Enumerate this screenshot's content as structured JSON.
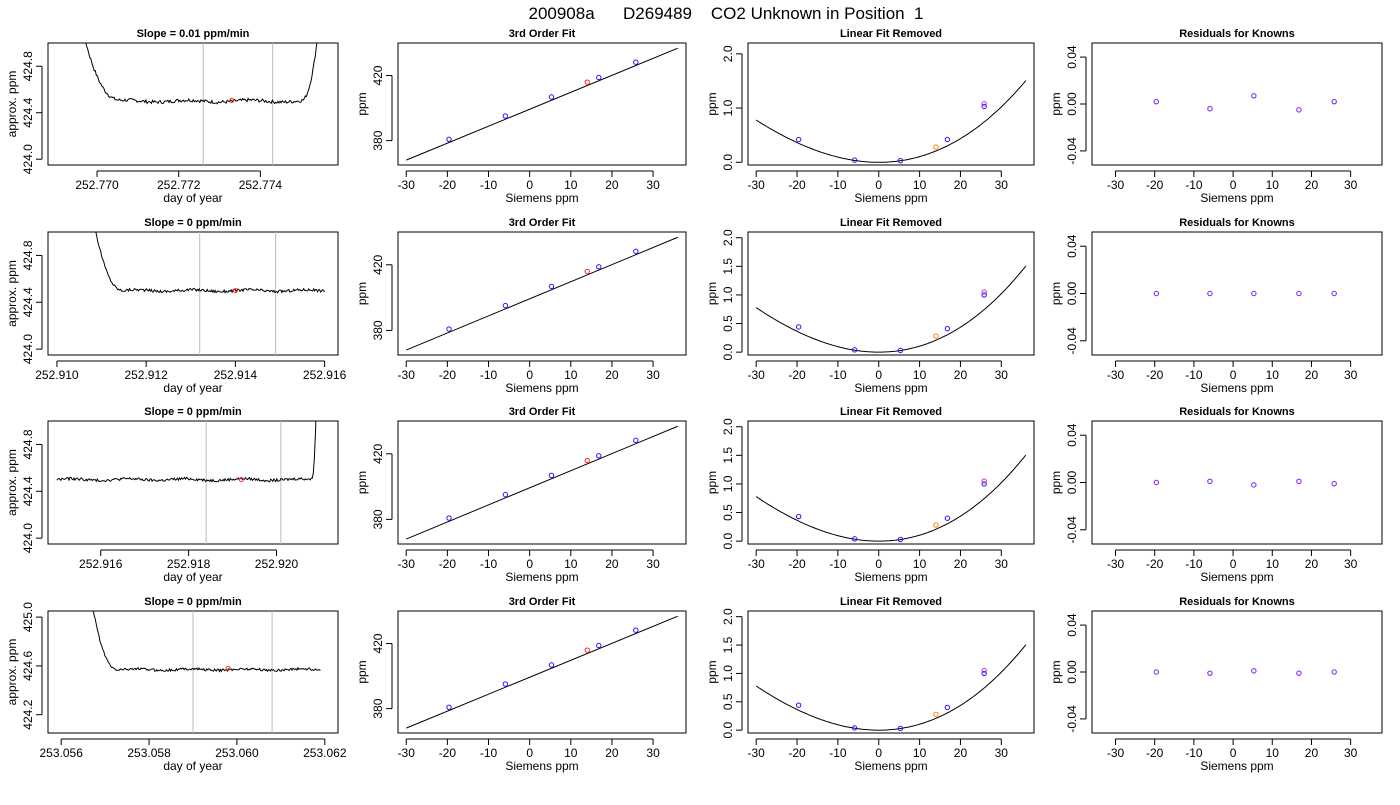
{
  "figure_title": "200908a      D269489    CO2 Unknown in Position  1",
  "colors": {
    "trace": "#000000",
    "guide": "#bdbdbd",
    "unknown": "#ff2a2a",
    "known_blue": "#1a1aff",
    "known_magenta": "#cc33cc",
    "known_purple": "#7a1aff",
    "unknown_orange": "#ff7f0e",
    "curve": "#000000"
  },
  "chart_data": [
    {
      "panel": "row1-col1",
      "type": "line",
      "title": "Slope =  0.01  ppm/min",
      "xlabel": "day of year",
      "ylabel": "approx. ppm",
      "xlim": [
        252.7688,
        252.7759
      ],
      "ylim": [
        423.95,
        425.0
      ],
      "xticks": [
        "252.770",
        "252.772",
        "252.774"
      ],
      "xtick_values": [
        252.77,
        252.772,
        252.774
      ],
      "yticks": [
        "424.0",
        "424.4",
        "424.8"
      ],
      "ytick_values": [
        424.0,
        424.4,
        424.8
      ],
      "trace": {
        "x_start": 252.7688,
        "x_end": 252.7758,
        "flat_from": 252.7706,
        "flat_to": 252.775,
        "level": 424.5,
        "noise": 0.015,
        "rise_left": true,
        "rise_right": true
      },
      "guides": [
        252.7726,
        252.7743
      ],
      "marker": {
        "x": 252.7733,
        "y": 424.505
      }
    },
    {
      "panel": "row1-col2",
      "type": "scatter",
      "title": "3rd Order Fit",
      "xlabel": "Siemens ppm",
      "ylabel": "ppm",
      "xlim": [
        -32,
        38
      ],
      "ylim": [
        365,
        440
      ],
      "xticks": [
        "-30",
        "-20",
        "-10",
        "0",
        "10",
        "20",
        "30"
      ],
      "xtick_values": [
        -30,
        -20,
        -10,
        0,
        10,
        20,
        30
      ],
      "yticks": [
        "380",
        "420"
      ],
      "ytick_values": [
        380,
        420
      ],
      "line": {
        "x": [
          -30,
          36
        ],
        "y": [
          368,
          436.8
        ]
      },
      "known_points": {
        "x": [
          -19.6,
          -5.9,
          5.3,
          16.8,
          25.8
        ],
        "y": [
          380.8,
          395.1,
          406.8,
          418.8,
          428.2
        ]
      },
      "unknown_point": {
        "x": 14.0,
        "y": 415.9
      }
    },
    {
      "panel": "row1-col3",
      "type": "scatter",
      "title": "Linear Fit Removed",
      "xlabel": "Siemens ppm",
      "ylabel": "ppm",
      "xlim": [
        -32,
        38
      ],
      "ylim": [
        -0.05,
        2.2
      ],
      "xticks": [
        "-30",
        "-20",
        "-10",
        "0",
        "10",
        "20",
        "30"
      ],
      "xtick_values": [
        -30,
        -20,
        -10,
        0,
        10,
        20,
        30
      ],
      "yticks": [
        "0.0",
        "1.0",
        "2.0"
      ],
      "ytick_values": [
        0.0,
        1.0,
        2.0
      ],
      "curve": {
        "a": 0.001,
        "b": 0.0,
        "cubic": 4.5e-06,
        "x_range": [
          -30,
          36
        ]
      },
      "known_points": {
        "x": [
          -19.6,
          -5.9,
          5.3,
          16.8,
          25.8
        ],
        "y": [
          0.42,
          0.04,
          0.03,
          0.42,
          1.03
        ]
      },
      "unknown_point": {
        "x": 14.0,
        "y": 0.28
      }
    },
    {
      "panel": "row1-col4",
      "type": "scatter",
      "title": "Residuals for Knowns",
      "xlabel": "Siemens ppm",
      "ylabel": "ppm",
      "xlim": [
        -36,
        38
      ],
      "ylim": [
        -0.052,
        0.052
      ],
      "xticks": [
        "-30",
        "-20",
        "-10",
        "0",
        "10",
        "20",
        "30"
      ],
      "xtick_values": [
        -30,
        -20,
        -10,
        0,
        10,
        20,
        30
      ],
      "yticks": [
        "-0.04",
        "0.00",
        "0.04"
      ],
      "ytick_values": [
        -0.04,
        0.0,
        0.04
      ],
      "points": {
        "x": [
          -19.6,
          -5.9,
          5.3,
          16.8,
          25.8
        ],
        "y": [
          0.002,
          -0.004,
          0.007,
          -0.005,
          0.002
        ]
      }
    },
    {
      "panel": "row2-col1",
      "type": "line",
      "title": "Slope =  0  ppm/min",
      "xlabel": "day of year",
      "ylabel": "approx. ppm",
      "xlim": [
        252.9098,
        252.9163
      ],
      "ylim": [
        423.95,
        425.0
      ],
      "xticks": [
        "252.910",
        "252.912",
        "252.914",
        "252.916"
      ],
      "xtick_values": [
        252.91,
        252.912,
        252.914,
        252.916
      ],
      "yticks": [
        "424.0",
        "424.4",
        "424.8"
      ],
      "ytick_values": [
        424.0,
        424.4,
        424.8
      ],
      "trace": {
        "x_start": 252.9102,
        "x_end": 252.916,
        "flat_from": 252.9115,
        "flat_to": 252.916,
        "level": 424.5,
        "noise": 0.012,
        "rise_left": true,
        "rise_right": false
      },
      "guides": [
        252.9132,
        252.9149
      ],
      "marker": {
        "x": 252.914,
        "y": 424.5
      }
    },
    {
      "panel": "row2-col2",
      "type": "scatter",
      "title": "3rd Order Fit",
      "xlabel": "Siemens ppm",
      "ylabel": "ppm",
      "xlim": [
        -32,
        38
      ],
      "ylim": [
        365,
        440
      ],
      "xticks": [
        "-30",
        "-20",
        "-10",
        "0",
        "10",
        "20",
        "30"
      ],
      "xtick_values": [
        -30,
        -20,
        -10,
        0,
        10,
        20,
        30
      ],
      "yticks": [
        "380",
        "420"
      ],
      "ytick_values": [
        380,
        420
      ],
      "line": {
        "x": [
          -30,
          36
        ],
        "y": [
          368,
          436.8
        ]
      },
      "known_points": {
        "x": [
          -19.6,
          -5.9,
          5.3,
          16.8,
          25.8
        ],
        "y": [
          380.8,
          395.1,
          406.8,
          418.8,
          428.2
        ]
      },
      "unknown_point": {
        "x": 14.0,
        "y": 415.9
      }
    },
    {
      "panel": "row2-col3",
      "type": "scatter",
      "title": "Linear Fit Removed",
      "xlabel": "Siemens ppm",
      "ylabel": "ppm",
      "xlim": [
        -32,
        38
      ],
      "ylim": [
        -0.05,
        2.1
      ],
      "xticks": [
        "-30",
        "-20",
        "-10",
        "0",
        "10",
        "20",
        "30"
      ],
      "xtick_values": [
        -30,
        -20,
        -10,
        0,
        10,
        20,
        30
      ],
      "yticks": [
        "0.0",
        "0.5",
        "1.0",
        "1.5",
        "2.0"
      ],
      "ytick_values": [
        0.0,
        0.5,
        1.0,
        1.5,
        2.0
      ],
      "curve": {
        "a": 0.001,
        "b": 0.0,
        "cubic": 4.5e-06,
        "x_range": [
          -30,
          36
        ]
      },
      "known_points": {
        "x": [
          -19.6,
          -5.9,
          5.3,
          16.8,
          25.8
        ],
        "y": [
          0.44,
          0.04,
          0.03,
          0.41,
          1.0
        ]
      },
      "unknown_point": {
        "x": 14.0,
        "y": 0.28
      }
    },
    {
      "panel": "row2-col4",
      "type": "scatter",
      "title": "Residuals for Knowns",
      "xlabel": "Siemens ppm",
      "ylabel": "ppm",
      "xlim": [
        -36,
        38
      ],
      "ylim": [
        -0.052,
        0.052
      ],
      "xticks": [
        "-30",
        "-20",
        "-10",
        "0",
        "10",
        "20",
        "30"
      ],
      "xtick_values": [
        -30,
        -20,
        -10,
        0,
        10,
        20,
        30
      ],
      "yticks": [
        "-0.04",
        "0.00",
        "0.04"
      ],
      "ytick_values": [
        -0.04,
        0.0,
        0.04
      ],
      "points": {
        "x": [
          -19.6,
          -5.9,
          5.3,
          16.8,
          25.8
        ],
        "y": [
          0.0,
          0.0,
          0.0,
          0.0,
          0.0
        ]
      }
    },
    {
      "panel": "row3-col1",
      "type": "line",
      "title": "Slope =  0  ppm/min",
      "xlabel": "day of year",
      "ylabel": "approx. ppm",
      "xlim": [
        252.9148,
        252.9214
      ],
      "ylim": [
        423.95,
        425.0
      ],
      "xticks": [
        "252.916",
        "252.918",
        "252.920"
      ],
      "xtick_values": [
        252.916,
        252.918,
        252.92
      ],
      "yticks": [
        "424.0",
        "424.4",
        "424.8"
      ],
      "ytick_values": [
        424.0,
        424.4,
        424.8
      ],
      "trace": {
        "x_start": 252.915,
        "x_end": 252.921,
        "flat_from": 252.915,
        "flat_to": 252.9208,
        "level": 424.5,
        "noise": 0.012,
        "rise_left": false,
        "rise_right": true
      },
      "guides": [
        252.9184,
        252.9201
      ],
      "marker": {
        "x": 252.9192,
        "y": 424.5
      }
    },
    {
      "panel": "row3-col2",
      "type": "scatter",
      "title": "3rd Order Fit",
      "xlabel": "Siemens ppm",
      "ylabel": "ppm",
      "xlim": [
        -32,
        38
      ],
      "ylim": [
        365,
        440
      ],
      "xticks": [
        "-30",
        "-20",
        "-10",
        "0",
        "10",
        "20",
        "30"
      ],
      "xtick_values": [
        -30,
        -20,
        -10,
        0,
        10,
        20,
        30
      ],
      "yticks": [
        "380",
        "420"
      ],
      "ytick_values": [
        380,
        420
      ],
      "line": {
        "x": [
          -30,
          36
        ],
        "y": [
          368,
          436.8
        ]
      },
      "known_points": {
        "x": [
          -19.6,
          -5.9,
          5.3,
          16.8,
          25.8
        ],
        "y": [
          380.8,
          395.1,
          406.8,
          418.8,
          428.2
        ]
      },
      "unknown_point": {
        "x": 14.0,
        "y": 415.9
      }
    },
    {
      "panel": "row3-col3",
      "type": "scatter",
      "title": "Linear Fit Removed",
      "xlabel": "Siemens ppm",
      "ylabel": "ppm",
      "xlim": [
        -32,
        38
      ],
      "ylim": [
        -0.05,
        2.1
      ],
      "xticks": [
        "-30",
        "-20",
        "-10",
        "0",
        "10",
        "20",
        "30"
      ],
      "xtick_values": [
        -30,
        -20,
        -10,
        0,
        10,
        20,
        30
      ],
      "yticks": [
        "0.0",
        "0.5",
        "1.0",
        "1.5",
        "2.0"
      ],
      "ytick_values": [
        0.0,
        0.5,
        1.0,
        1.5,
        2.0
      ],
      "curve": {
        "a": 0.001,
        "b": 0.0,
        "cubic": 4.5e-06,
        "x_range": [
          -30,
          36
        ]
      },
      "known_points": {
        "x": [
          -19.6,
          -5.9,
          5.3,
          16.8,
          25.8
        ],
        "y": [
          0.43,
          0.04,
          0.03,
          0.4,
          1.0
        ]
      },
      "unknown_point": {
        "x": 14.0,
        "y": 0.28
      }
    },
    {
      "panel": "row3-col4",
      "type": "scatter",
      "title": "Residuals for Knowns",
      "xlabel": "Siemens ppm",
      "ylabel": "ppm",
      "xlim": [
        -36,
        38
      ],
      "ylim": [
        -0.052,
        0.052
      ],
      "xticks": [
        "-30",
        "-20",
        "-10",
        "0",
        "10",
        "20",
        "30"
      ],
      "xtick_values": [
        -30,
        -20,
        -10,
        0,
        10,
        20,
        30
      ],
      "yticks": [
        "-0.04",
        "0.00",
        "0.04"
      ],
      "ytick_values": [
        -0.04,
        0.0,
        0.04
      ],
      "points": {
        "x": [
          -19.6,
          -5.9,
          5.3,
          16.8,
          25.8
        ],
        "y": [
          0.0,
          0.001,
          -0.002,
          0.001,
          -0.001
        ]
      }
    },
    {
      "panel": "row4-col1",
      "type": "line",
      "title": "Slope =  0  ppm/min",
      "xlabel": "day of year",
      "ylabel": "approx. ppm",
      "xlim": [
        253.0557,
        253.0623
      ],
      "ylim": [
        424.05,
        425.05
      ],
      "xticks": [
        "253.056",
        "253.058",
        "253.060",
        "253.062"
      ],
      "xtick_values": [
        253.056,
        253.058,
        253.06,
        253.062
      ],
      "yticks": [
        "424.2",
        "424.6",
        "425.0"
      ],
      "ytick_values": [
        424.2,
        424.6,
        425.0
      ],
      "trace": {
        "x_start": 253.0561,
        "x_end": 253.0619,
        "flat_from": 253.0573,
        "flat_to": 253.0619,
        "level": 424.57,
        "noise": 0.01,
        "rise_left": true,
        "rise_right": false
      },
      "guides": [
        253.059,
        253.0608
      ],
      "marker": {
        "x": 253.0598,
        "y": 424.58
      }
    },
    {
      "panel": "row4-col2",
      "type": "scatter",
      "title": "3rd Order Fit",
      "xlabel": "Siemens ppm",
      "ylabel": "ppm",
      "xlim": [
        -32,
        38
      ],
      "ylim": [
        365,
        440
      ],
      "xticks": [
        "-30",
        "-20",
        "-10",
        "0",
        "10",
        "20",
        "30"
      ],
      "xtick_values": [
        -30,
        -20,
        -10,
        0,
        10,
        20,
        30
      ],
      "yticks": [
        "380",
        "420"
      ],
      "ytick_values": [
        380,
        420
      ],
      "line": {
        "x": [
          -30,
          36
        ],
        "y": [
          368,
          436.8
        ]
      },
      "known_points": {
        "x": [
          -19.6,
          -5.9,
          5.3,
          16.8,
          25.8
        ],
        "y": [
          380.8,
          395.1,
          406.8,
          418.8,
          428.2
        ]
      },
      "unknown_point": {
        "x": 14.0,
        "y": 415.9
      }
    },
    {
      "panel": "row4-col3",
      "type": "scatter",
      "title": "Linear Fit Removed",
      "xlabel": "Siemens ppm",
      "ylabel": "ppm",
      "xlim": [
        -32,
        38
      ],
      "ylim": [
        -0.05,
        2.1
      ],
      "xticks": [
        "-30",
        "-20",
        "-10",
        "0",
        "10",
        "20",
        "30"
      ],
      "xtick_values": [
        -30,
        -20,
        -10,
        0,
        10,
        20,
        30
      ],
      "yticks": [
        "0.0",
        "0.5",
        "1.0",
        "1.5",
        "2.0"
      ],
      "ytick_values": [
        0.0,
        0.5,
        1.0,
        1.5,
        2.0
      ],
      "curve": {
        "a": 0.001,
        "b": 0.0,
        "cubic": 4.5e-06,
        "x_range": [
          -30,
          36
        ]
      },
      "known_points": {
        "x": [
          -19.6,
          -5.9,
          5.3,
          16.8,
          25.8
        ],
        "y": [
          0.44,
          0.04,
          0.03,
          0.4,
          1.0
        ]
      },
      "unknown_point": {
        "x": 14.0,
        "y": 0.28
      }
    },
    {
      "panel": "row4-col4",
      "type": "scatter",
      "title": "Residuals for Knowns",
      "xlabel": "Siemens ppm",
      "ylabel": "ppm",
      "xlim": [
        -36,
        38
      ],
      "ylim": [
        -0.052,
        0.052
      ],
      "xticks": [
        "-30",
        "-20",
        "-10",
        "0",
        "10",
        "20",
        "30"
      ],
      "xtick_values": [
        -30,
        -20,
        -10,
        0,
        10,
        20,
        30
      ],
      "yticks": [
        "-0.04",
        "0.00",
        "0.04"
      ],
      "ytick_values": [
        -0.04,
        0.0,
        0.04
      ],
      "points": {
        "x": [
          -19.6,
          -5.9,
          5.3,
          16.8,
          25.8
        ],
        "y": [
          0.0,
          -0.001,
          0.001,
          -0.001,
          0.0
        ]
      }
    }
  ]
}
